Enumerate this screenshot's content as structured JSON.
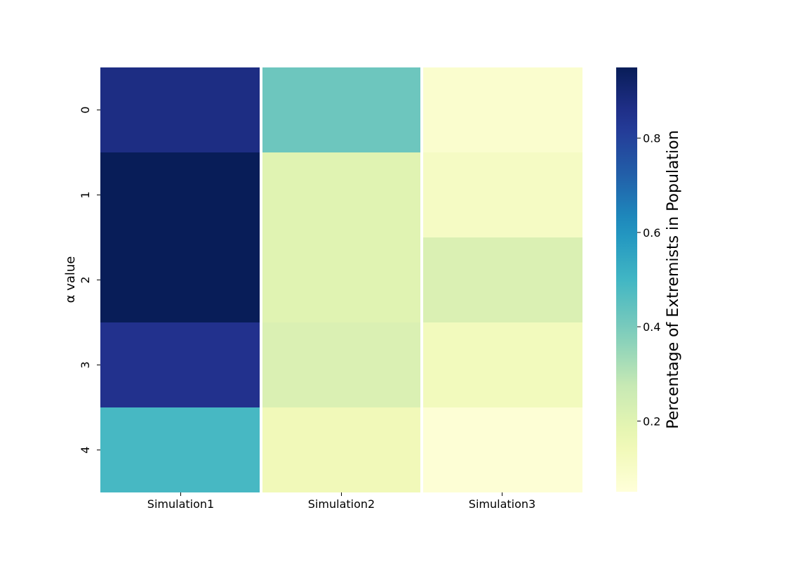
{
  "chart_data": {
    "type": "heatmap",
    "title": "",
    "xlabel": "",
    "ylabel": "α value",
    "x_categories": [
      "Simulation1",
      "Simulation2",
      "Simulation3"
    ],
    "y_categories": [
      "0",
      "1",
      "2",
      "3",
      "4"
    ],
    "values": [
      [
        0.87,
        0.42,
        0.08
      ],
      [
        0.95,
        0.2,
        0.11
      ],
      [
        0.95,
        0.2,
        0.22
      ],
      [
        0.85,
        0.22,
        0.13
      ],
      [
        0.49,
        0.14,
        0.06
      ]
    ],
    "colormap": "YlGnBu",
    "vmin": 0.05,
    "vmax": 0.95,
    "grid": false,
    "colorbar": {
      "label": "Percentage of Extremists in Population",
      "ticks": [
        0.2,
        0.4,
        0.6,
        0.8
      ],
      "tick_labels": [
        "0.2",
        "0.4",
        "0.6",
        "0.8"
      ],
      "placement": "right"
    },
    "column_separators_color": "#ffffff"
  }
}
